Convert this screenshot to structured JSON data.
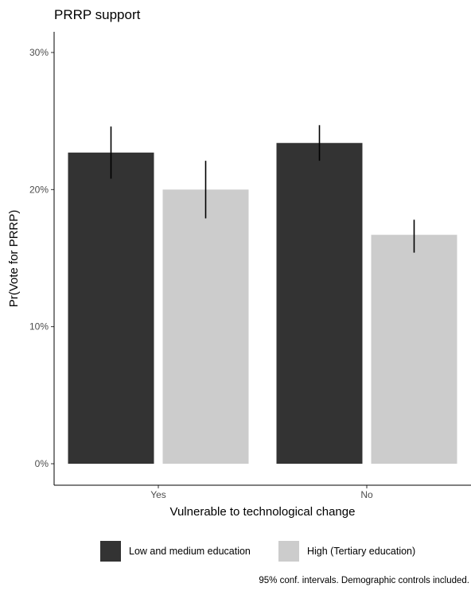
{
  "chart_data": {
    "type": "bar",
    "title": "PRRP support",
    "xlabel": "Vulnerable to technological change",
    "ylabel": "Pr(Vote for PRRP)",
    "categories": [
      "Yes",
      "No"
    ],
    "ylim": [
      0,
      0.3
    ],
    "yticks": [
      0,
      0.1,
      0.2,
      0.3
    ],
    "ytick_labels": [
      "0%",
      "10%",
      "20%",
      "30%"
    ],
    "series": [
      {
        "name": "Low and medium education",
        "color": "#333333",
        "values": [
          0.227,
          0.234
        ],
        "ci_low": [
          0.208,
          0.221
        ],
        "ci_high": [
          0.246,
          0.247
        ]
      },
      {
        "name": "High (Tertiary education)",
        "color": "#cccccc",
        "values": [
          0.2,
          0.167
        ],
        "ci_low": [
          0.179,
          0.154
        ],
        "ci_high": [
          0.221,
          0.178
        ]
      }
    ],
    "legend_position": "bottom",
    "grid": false,
    "caption": "95% conf. intervals. Demographic controls included."
  }
}
